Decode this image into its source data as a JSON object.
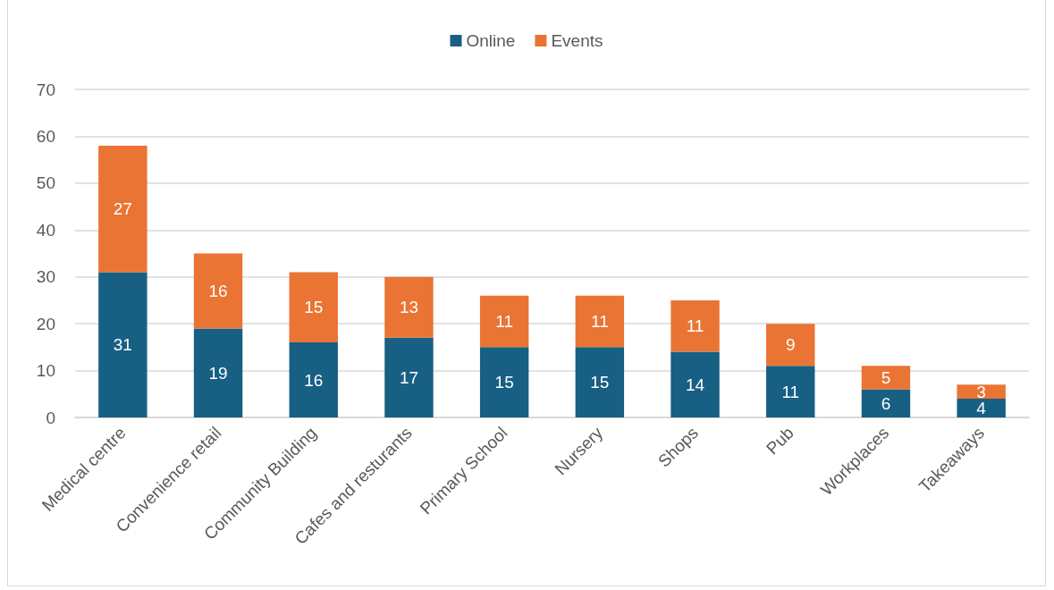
{
  "chart_data": {
    "type": "bar",
    "stacked": true,
    "categories": [
      "Medical centre",
      "Convenience retail",
      "Community Building",
      "Cafes and resturants",
      "Primary School",
      "Nursery",
      "Shops",
      "Pub",
      "Workplaces",
      "Takeaways"
    ],
    "series": [
      {
        "name": "Online",
        "color": "#175f83",
        "values": [
          31,
          19,
          16,
          17,
          15,
          15,
          14,
          11,
          6,
          4
        ]
      },
      {
        "name": "Events",
        "color": "#e97434",
        "values": [
          27,
          16,
          15,
          13,
          11,
          11,
          11,
          9,
          5,
          3
        ]
      }
    ],
    "ylim": [
      0,
      70
    ],
    "yticks": [
      0,
      10,
      20,
      30,
      40,
      50,
      60,
      70
    ],
    "grid": "y",
    "legend": "top",
    "data_labels": true
  }
}
